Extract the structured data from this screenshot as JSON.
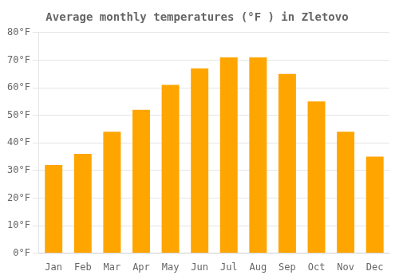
{
  "chart_data": {
    "type": "bar",
    "title": "Average monthly temperatures (°F ) in Zletovo",
    "categories": [
      "Jan",
      "Feb",
      "Mar",
      "Apr",
      "May",
      "Jun",
      "Jul",
      "Aug",
      "Sep",
      "Oct",
      "Nov",
      "Dec"
    ],
    "values": [
      32,
      36,
      44,
      52,
      61,
      67,
      71,
      71,
      65,
      55,
      44,
      35
    ],
    "color": "#FFA500",
    "ylim": [
      0,
      80
    ],
    "yticks": [
      {
        "value": 0,
        "label": "0°F"
      },
      {
        "value": 10,
        "label": "10°F"
      },
      {
        "value": 20,
        "label": "20°F"
      },
      {
        "value": 30,
        "label": "30°F"
      },
      {
        "value": 40,
        "label": "40°F"
      },
      {
        "value": 50,
        "label": "50°F"
      },
      {
        "value": 60,
        "label": "60°F"
      },
      {
        "value": 70,
        "label": "70°F"
      },
      {
        "value": 80,
        "label": "80°F"
      }
    ],
    "grid": true
  }
}
